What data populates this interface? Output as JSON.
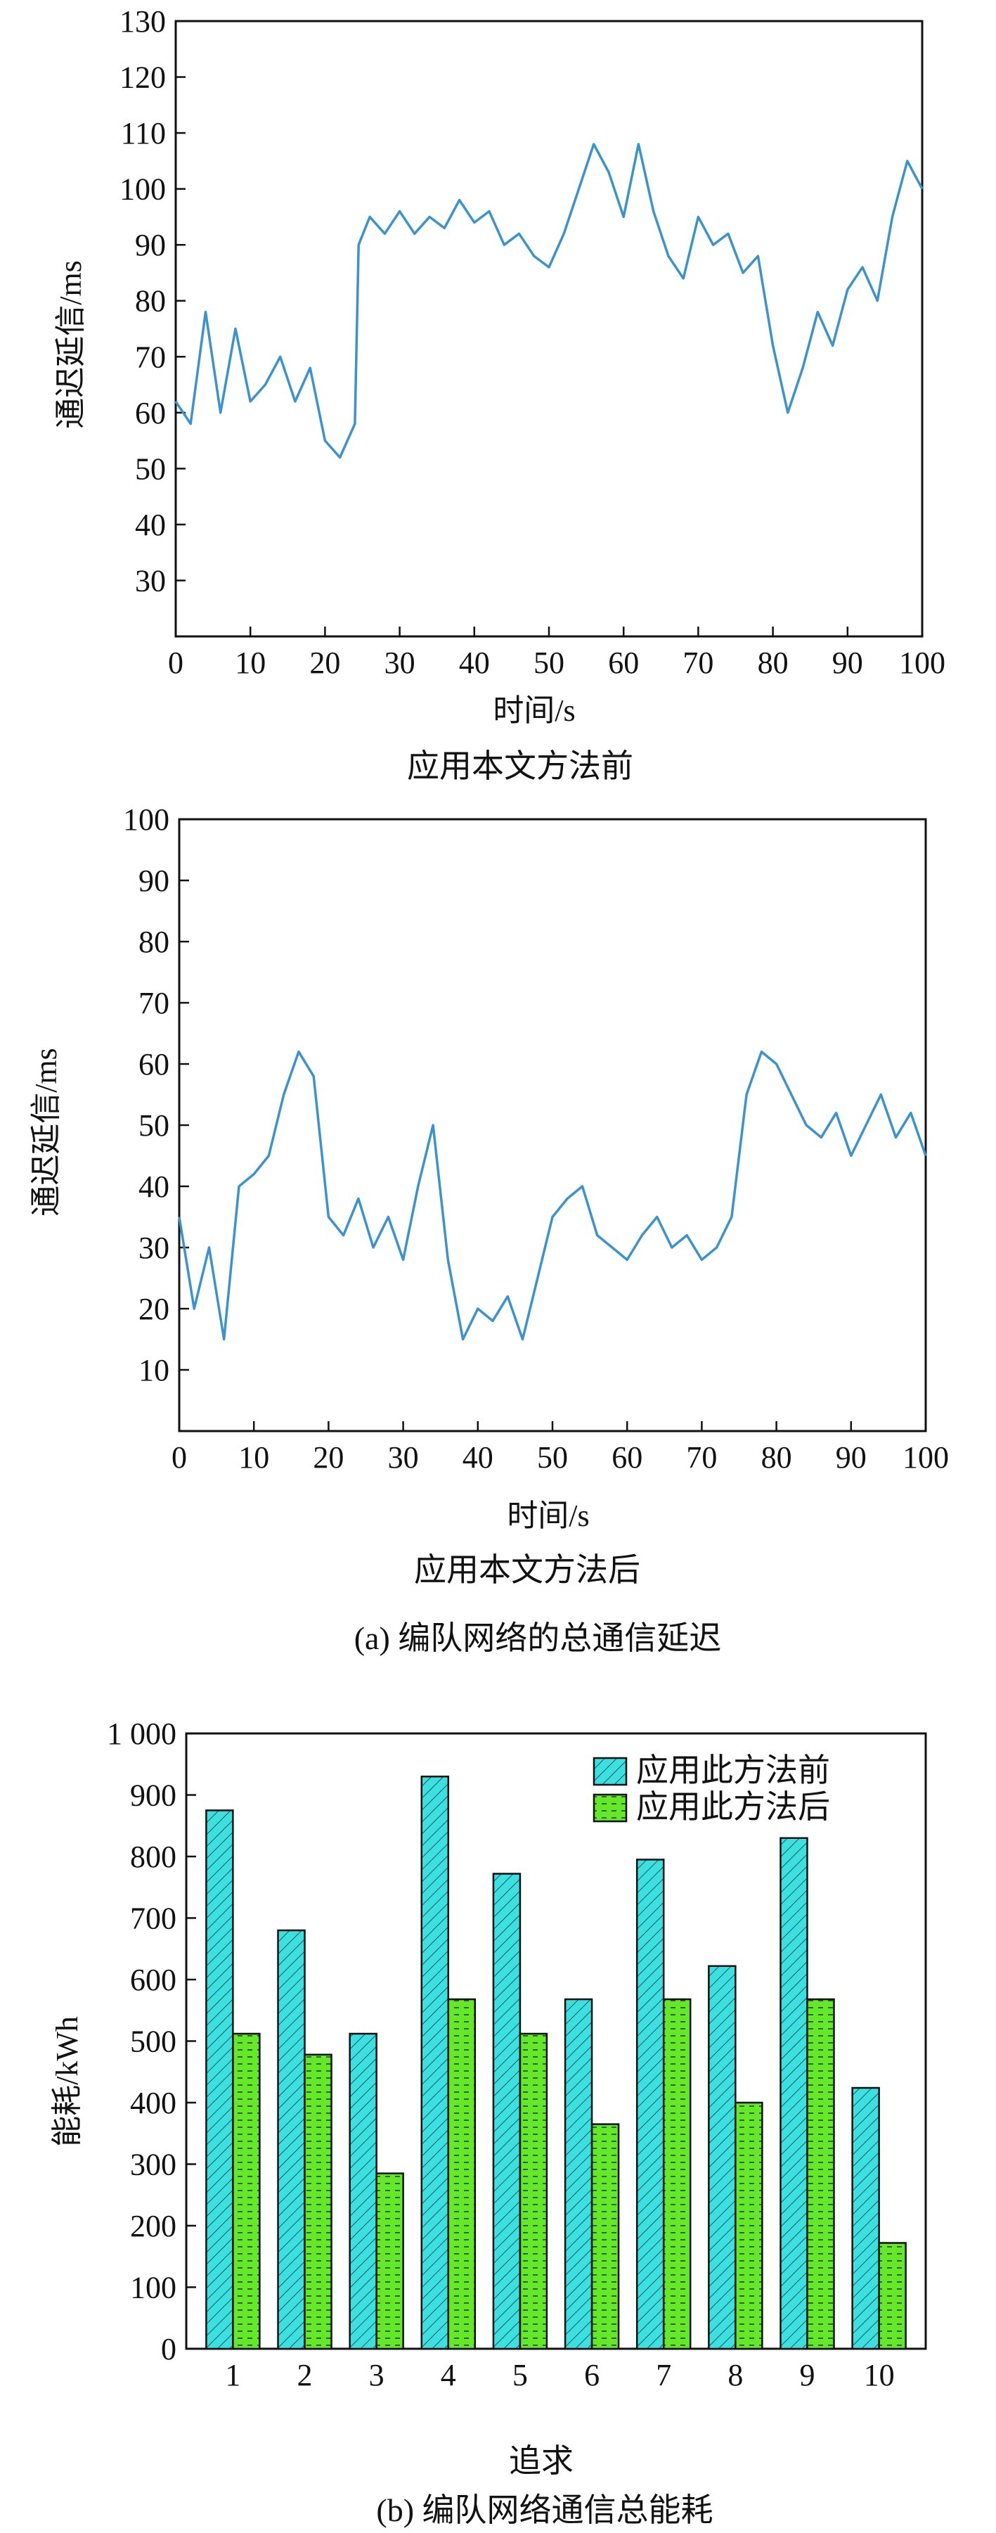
{
  "chart_data": [
    {
      "type": "line",
      "caption": "应用本文方法前",
      "xlabel": "时间/s",
      "ylabel": "通迟延信/ms",
      "xlim": [
        0,
        100
      ],
      "ylim": [
        20,
        130
      ],
      "xticks": [
        0,
        10,
        20,
        30,
        40,
        50,
        60,
        70,
        80,
        90,
        100
      ],
      "yticks": [
        30,
        40,
        50,
        60,
        70,
        80,
        90,
        100,
        110,
        120,
        130
      ],
      "line_color": "#3a93cf",
      "series": [
        {
          "x": [
            0,
            2,
            4,
            6,
            8,
            10,
            12,
            14,
            16,
            18,
            20,
            22,
            24,
            24.5,
            26,
            28,
            30,
            32,
            34,
            36,
            38,
            40,
            42,
            44,
            46,
            48,
            50,
            52,
            54,
            56,
            58,
            60,
            62,
            64,
            66,
            68,
            70,
            72,
            74,
            76,
            78,
            80,
            82,
            84,
            86,
            88,
            90,
            92,
            94,
            96,
            98,
            100
          ],
          "y": [
            62,
            58,
            78,
            60,
            75,
            62,
            65,
            70,
            62,
            68,
            55,
            52,
            58,
            90,
            95,
            92,
            96,
            92,
            95,
            93,
            98,
            94,
            96,
            90,
            92,
            88,
            86,
            92,
            100,
            108,
            103,
            95,
            108,
            96,
            88,
            84,
            95,
            90,
            92,
            85,
            88,
            72,
            60,
            68,
            78,
            72,
            82,
            86,
            80,
            95,
            105,
            100
          ]
        }
      ]
    },
    {
      "type": "line",
      "caption": "应用本文方法后",
      "xlabel": "时间/s",
      "ylabel": "通迟延信/ms",
      "xlim": [
        0,
        100
      ],
      "ylim": [
        0,
        100
      ],
      "xticks": [
        0,
        10,
        20,
        30,
        40,
        50,
        60,
        70,
        80,
        90,
        100
      ],
      "yticks": [
        10,
        20,
        30,
        40,
        50,
        60,
        70,
        80,
        90,
        100
      ],
      "line_color": "#3a93cf",
      "series": [
        {
          "x": [
            0,
            2,
            4,
            6,
            8,
            10,
            12,
            14,
            16,
            18,
            20,
            22,
            24,
            26,
            28,
            30,
            32,
            34,
            36,
            38,
            40,
            42,
            44,
            46,
            48,
            50,
            52,
            54,
            56,
            58,
            60,
            62,
            64,
            66,
            68,
            70,
            72,
            74,
            76,
            78,
            80,
            82,
            84,
            86,
            88,
            90,
            92,
            94,
            96,
            98,
            100
          ],
          "y": [
            35,
            20,
            30,
            15,
            40,
            42,
            45,
            55,
            62,
            58,
            35,
            32,
            38,
            30,
            35,
            28,
            40,
            50,
            28,
            15,
            20,
            18,
            22,
            15,
            25,
            35,
            38,
            40,
            32,
            30,
            28,
            32,
            35,
            30,
            32,
            28,
            30,
            35,
            55,
            62,
            60,
            55,
            50,
            48,
            52,
            45,
            50,
            55,
            48,
            52,
            45
          ]
        }
      ]
    },
    {
      "type": "bar",
      "xlabel": "追求",
      "ylabel": "能耗/kWh",
      "ylim": [
        0,
        1000
      ],
      "yticks": [
        0,
        100,
        200,
        300,
        400,
        500,
        600,
        700,
        800,
        900,
        1000
      ],
      "ytick_labels": [
        "0",
        "100",
        "200",
        "300",
        "400",
        "500",
        "600",
        "700",
        "800",
        "900",
        "1 000"
      ],
      "legend_position": "top-right",
      "categories": [
        "1",
        "2",
        "3",
        "4",
        "5",
        "6",
        "7",
        "8",
        "9",
        "10"
      ],
      "series": [
        {
          "name": "应用此方法前",
          "color": "#3de0e0",
          "values": [
            875,
            680,
            512,
            930,
            772,
            568,
            795,
            622,
            830,
            424
          ]
        },
        {
          "name": "应用此方法后",
          "color": "#66e82a",
          "values": [
            512,
            478,
            285,
            568,
            512,
            365,
            568,
            400,
            568,
            172
          ]
        }
      ]
    }
  ],
  "captions": {
    "a": "(a) 编队网络的总通信延迟",
    "b": "(b) 编队网络通信总能耗"
  }
}
